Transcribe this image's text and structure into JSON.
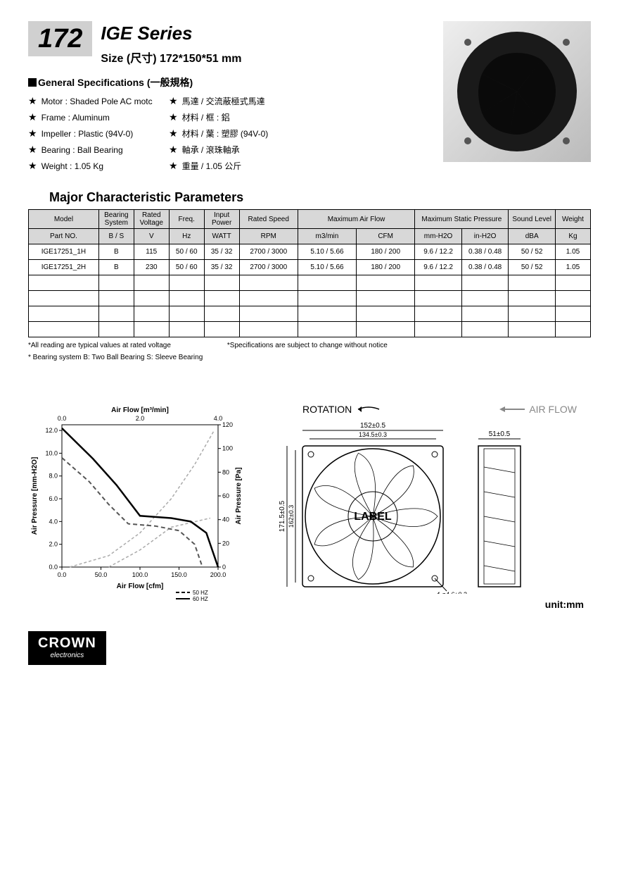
{
  "header": {
    "badge": "172",
    "series_title": "IGE Series",
    "size_label": "Size (尺寸) 172*150*51 mm"
  },
  "general_specs": {
    "heading": "General Specifications  (一般規格)",
    "left": [
      "Motor    : Shaded Pole AC motc",
      "Frame    : Aluminum",
      "Impeller : Plastic (94V-0)",
      "Bearing  : Ball Bearing",
      "Weight   : 1.05  Kg"
    ],
    "right": [
      "馬達 / 交流蔽極式馬達",
      "材料 / 框 : 鋁",
      "材料 / 葉 : 塑膠 (94V-0)",
      "軸承 / 滾珠軸承",
      "重量 / 1.05 公斤"
    ]
  },
  "table": {
    "title": "Major Characteristic Parameters",
    "header1": [
      "Model",
      "Bearing System",
      "Rated Voltage",
      "Freq.",
      "Input Power",
      "Rated Speed",
      "Maximum Air Flow",
      "Maximum Static Pressure",
      "Sound Level",
      "Weight"
    ],
    "header2": [
      "Part NO.",
      "B / S",
      "V",
      "Hz",
      "WATT",
      "RPM",
      "m3/min",
      "CFM",
      "mm-H2O",
      "in-H2O",
      "dBA",
      "Kg"
    ],
    "col_widths_pct": [
      12,
      6,
      6,
      6,
      6,
      10,
      10,
      10,
      8,
      8,
      8,
      6
    ],
    "rows": [
      [
        "IGE17251_1H",
        "B",
        "115",
        "50 / 60",
        "35 / 32",
        "2700 / 3000",
        "5.10  /  5.66",
        "180  /  200",
        "9.6  /  12.2",
        "0.38 / 0.48",
        "50  /  52",
        "1.05"
      ],
      [
        "IGE17251_2H",
        "B",
        "230",
        "50 / 60",
        "35 / 32",
        "2700 / 3000",
        "5.10  /  5.66",
        "180  /  200",
        "9.6  /  12.2",
        "0.38 / 0.48",
        "50  /  52",
        "1.05"
      ],
      [
        "",
        "",
        "",
        "",
        "",
        "",
        "",
        "",
        "",
        "",
        "",
        ""
      ],
      [
        "",
        "",
        "",
        "",
        "",
        "",
        "",
        "",
        "",
        "",
        "",
        ""
      ],
      [
        "",
        "",
        "",
        "",
        "",
        "",
        "",
        "",
        "",
        "",
        "",
        ""
      ],
      [
        "",
        "",
        "",
        "",
        "",
        "",
        "",
        "",
        "",
        "",
        "",
        ""
      ]
    ],
    "footnotes": [
      "*All reading are typical values at rated voltage",
      "*Specifications are subject to change without notice",
      "* Bearing system  B: Two Ball Bearing  S: Sleeve Bearing"
    ]
  },
  "chart": {
    "top_axis_label": "Air Flow [m³/min]",
    "top_ticks": [
      "0.0",
      "2.0",
      "4.0"
    ],
    "left_axis_label": "Air Pressure [mm-H2O]",
    "left_ticks": [
      "0.0",
      "2.0",
      "4.0",
      "6.0",
      "8.0",
      "10.0",
      "12.0"
    ],
    "right_axis_label": "Air Pressure [Pa]",
    "right_ticks": [
      "0",
      "20",
      "40",
      "60",
      "80",
      "100",
      "120"
    ],
    "bottom_axis_label": "Air Flow [cfm]",
    "bottom_ticks": [
      "0.0",
      "50.0",
      "100.0",
      "150.0",
      "200.0"
    ],
    "legend": {
      "dash": "50 HZ",
      "solid": "60 HZ"
    },
    "series_60hz": {
      "color": "#000000",
      "width": 2.5,
      "dash": "none",
      "points": [
        [
          0,
          12.2
        ],
        [
          40,
          9.5
        ],
        [
          70,
          7.2
        ],
        [
          100,
          4.5
        ],
        [
          140,
          4.3
        ],
        [
          165,
          4.0
        ],
        [
          185,
          3.0
        ],
        [
          200,
          0
        ]
      ]
    },
    "series_50hz": {
      "color": "#555555",
      "width": 2,
      "dash": "6,4",
      "points": [
        [
          0,
          9.6
        ],
        [
          35,
          7.5
        ],
        [
          60,
          5.5
        ],
        [
          85,
          3.8
        ],
        [
          120,
          3.6
        ],
        [
          150,
          3.2
        ],
        [
          170,
          2.0
        ],
        [
          180,
          0
        ]
      ]
    },
    "aux_curve1": {
      "color": "#aaaaaa",
      "width": 1.5,
      "dash": "4,3",
      "points": [
        [
          10,
          0
        ],
        [
          60,
          1
        ],
        [
          100,
          3
        ],
        [
          140,
          6
        ],
        [
          170,
          9
        ],
        [
          195,
          12
        ]
      ]
    },
    "aux_curve2": {
      "color": "#aaaaaa",
      "width": 1.5,
      "dash": "4,3",
      "points": [
        [
          60,
          0
        ],
        [
          100,
          1.5
        ],
        [
          140,
          3.5
        ],
        [
          190,
          4.3
        ]
      ]
    },
    "xlim": [
      0,
      200
    ],
    "ylim": [
      0,
      12.5
    ],
    "background": "#ffffff",
    "grid_color": "#e0e0e0"
  },
  "diagram": {
    "rotation_label": "ROTATION",
    "airflow_label": "AIR FLOW",
    "label_text": "LABEL",
    "dim_w": "152±0.5",
    "dim_w2": "134.5±0.3",
    "dim_h": "171.5±0.5",
    "dim_h2": "162±0.3",
    "dim_d": "51±0.5",
    "hole": "4-ø4.6±0.3",
    "unit": "unit:mm"
  },
  "brand": {
    "top": "CROWN",
    "bot": "electronics"
  }
}
